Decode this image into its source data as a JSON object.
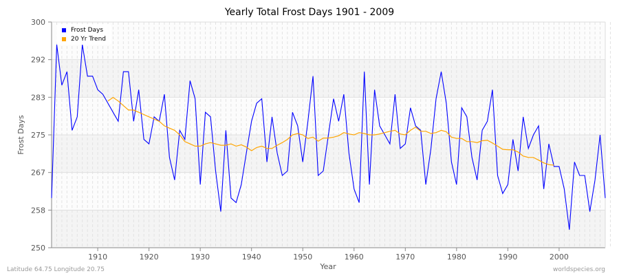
{
  "chart_data": {
    "type": "line",
    "title": "Yearly Total Frost Days 1901 - 2009",
    "xlabel": "Year",
    "ylabel": "Frost Days",
    "xlim": [
      1901,
      2009
    ],
    "ylim": [
      250,
      300
    ],
    "x_ticks": [
      "1910",
      "1920",
      "1930",
      "1940",
      "1950",
      "1960",
      "1970",
      "1980",
      "1990",
      "2000"
    ],
    "y_ticks": [
      "250",
      "258",
      "267",
      "275",
      "283",
      "292",
      "300"
    ],
    "grid": true,
    "legend_position": "top-left",
    "series": [
      {
        "name": "Frost Days",
        "color": "#0000ff",
        "start_year": 1901,
        "values": [
          261,
          295,
          286,
          289,
          276,
          279,
          295,
          288,
          288,
          285,
          284,
          282,
          280,
          278,
          289,
          289,
          278,
          285,
          274,
          273,
          279,
          278,
          284,
          270,
          265,
          276,
          274,
          287,
          283,
          264,
          280,
          279,
          267,
          258,
          276,
          261,
          260,
          264,
          271,
          278,
          282,
          283,
          269,
          279,
          271,
          266,
          267,
          280,
          277,
          269,
          278,
          288,
          266,
          267,
          275,
          283,
          278,
          284,
          271,
          263,
          260,
          289,
          264,
          285,
          277,
          275,
          273,
          284,
          272,
          273,
          281,
          277,
          276,
          264,
          272,
          283,
          289,
          282,
          269,
          264,
          281,
          279,
          270,
          265,
          276,
          278,
          285,
          266,
          262,
          264,
          274,
          267,
          279,
          272,
          275,
          277,
          263,
          273,
          268,
          268,
          263,
          254,
          269,
          266,
          266,
          258,
          265,
          275,
          261
        ]
      },
      {
        "name": "20 Yr Trend",
        "color": "#ffa500",
        "start_year": 1912,
        "values": [
          282.5,
          283.3,
          282.5,
          281.5,
          280.5,
          280.5,
          280,
          279.5,
          279,
          278.5,
          278,
          277,
          276.5,
          276,
          275,
          273.5,
          273,
          272.5,
          272.5,
          273,
          273.3,
          273,
          272.7,
          272.7,
          273,
          272.5,
          272.8,
          272.3,
          271.5,
          272.2,
          272.5,
          272,
          272,
          272.7,
          273.3,
          274,
          275,
          275.3,
          275,
          274.2,
          274.5,
          273.6,
          274.3,
          274.3,
          274.5,
          274.8,
          275.5,
          275.2,
          275,
          275.5,
          275.3,
          275,
          275,
          275.2,
          275.5,
          275.8,
          276,
          275.2,
          275,
          276,
          276.7,
          275.8,
          275.8,
          275.3,
          275.5,
          276,
          275.7,
          274.5,
          274.2,
          274.2,
          273.5,
          273.5,
          273.3,
          273.7,
          273.8,
          273.2,
          272.5,
          271.8,
          271.7,
          271.7,
          271.2,
          270.3,
          270,
          270,
          269.4,
          268.8,
          268.4,
          268.3
        ]
      }
    ]
  },
  "footer": {
    "location": "Latitude 64.75 Longitude 20.75",
    "source": "worldspecies.org"
  }
}
